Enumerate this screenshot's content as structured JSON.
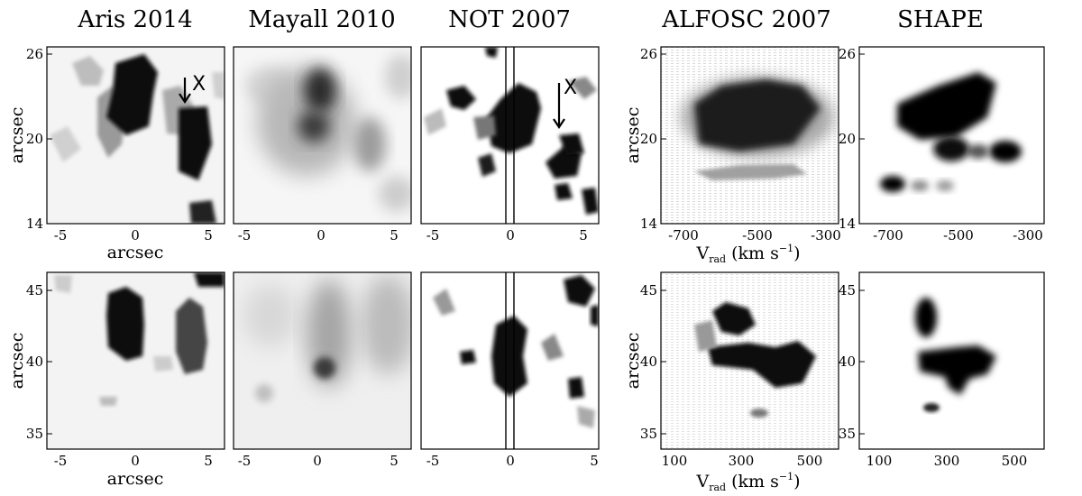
{
  "titles": {
    "aris": "Aris 2014",
    "mayall": "Mayall 2010",
    "not": "NOT 2007",
    "alfosc": "ALFOSC 2007",
    "shape": "SHAPE"
  },
  "axis_labels": {
    "arcsec": "arcsec",
    "vrad_main": "V",
    "vrad_sub": "rad",
    "vrad_unit": "(km s",
    "vrad_exp": "−1",
    "vrad_close": ")"
  },
  "marker": "X",
  "ticks": {
    "pos_x": [
      "-5",
      "0",
      "5"
    ],
    "top_y": [
      "26",
      "20",
      "14"
    ],
    "bot_y": [
      "45",
      "40",
      "35"
    ],
    "vel_top": [
      "-700",
      "-500",
      "-300"
    ],
    "vel_bot": [
      "100",
      "300",
      "500"
    ]
  },
  "colors": {
    "ink": "#000000",
    "background": "#ffffff"
  }
}
